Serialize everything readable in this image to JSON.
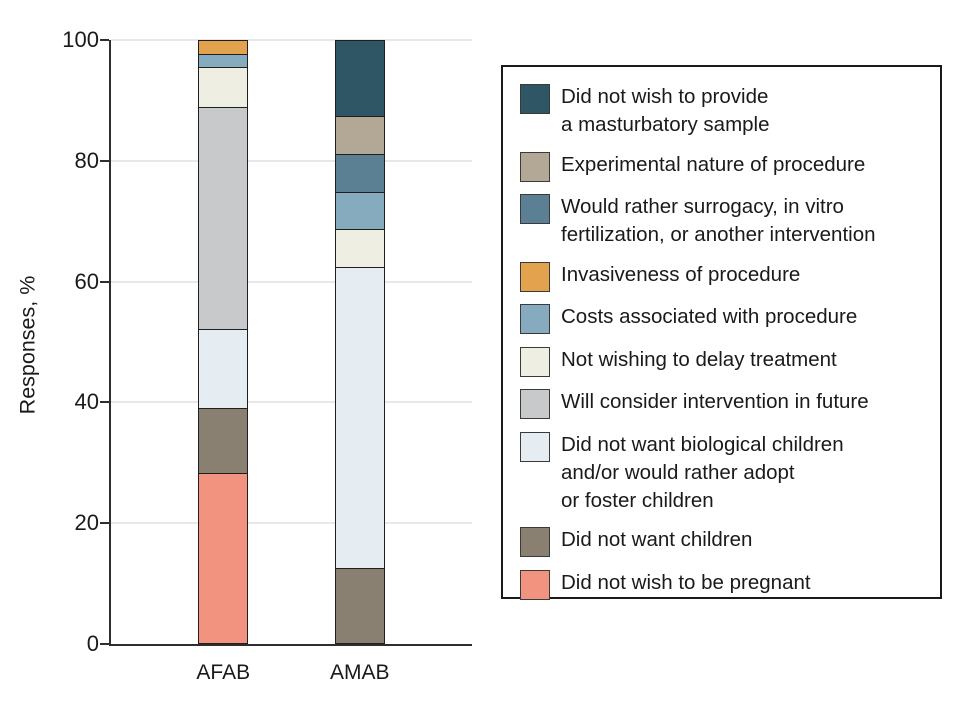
{
  "chart_data": {
    "type": "bar",
    "stacked": true,
    "title": "",
    "xlabel": "",
    "ylabel": "Responses, %",
    "ylim": [
      0,
      100
    ],
    "yticks": [
      0,
      20,
      40,
      60,
      80,
      100
    ],
    "grid": true,
    "legend_position": "right",
    "categories": [
      "AFAB",
      "AMAB"
    ],
    "stack_order": "bottom-to-top",
    "series": [
      {
        "name": "Did not wish to be pregnant",
        "color": "#F29380",
        "values": [
          28.3,
          0
        ]
      },
      {
        "name": "Did not want children",
        "color": "#8A8071",
        "values": [
          10.9,
          12.5
        ]
      },
      {
        "name": "Did not want biological children and/or would rather adopt or foster children",
        "color": "#E6EDF2",
        "values": [
          13.0,
          50.0
        ]
      },
      {
        "name": "Will consider intervention in future",
        "color": "#C7C9CB",
        "values": [
          37.0,
          0
        ]
      },
      {
        "name": "Not wishing to delay treatment",
        "color": "#EFEEE2",
        "values": [
          6.5,
          6.25
        ]
      },
      {
        "name": "Costs associated with procedure",
        "color": "#87ABBE",
        "values": [
          2.2,
          6.25
        ]
      },
      {
        "name": "Would rather surrogacy, in vitro fertilization, or another intervention",
        "color": "#5B8093",
        "values": [
          0,
          6.25
        ]
      },
      {
        "name": "Experimental nature of procedure",
        "color": "#B3A895",
        "values": [
          0,
          6.25
        ]
      },
      {
        "name": "Did not wish to provide a masturbatory sample",
        "color": "#2F5665",
        "values": [
          0,
          12.5
        ]
      },
      {
        "name": "Invasiveness of procedure",
        "color": "#E3A24E",
        "values": [
          2.2,
          0
        ]
      }
    ]
  },
  "legend": {
    "items": [
      {
        "label": "Did not wish to provide\na masturbatory sample",
        "color": "#2F5665"
      },
      {
        "label": "Experimental nature of procedure",
        "color": "#B3A895"
      },
      {
        "label": "Would rather surrogacy, in vitro\nfertilization, or another intervention",
        "color": "#5B8093"
      },
      {
        "label": "Invasiveness of procedure",
        "color": "#E3A24E"
      },
      {
        "label": "Costs associated with procedure",
        "color": "#87ABBE"
      },
      {
        "label": "Not wishing to delay treatment",
        "color": "#EFEEE2"
      },
      {
        "label": "Will consider intervention in future",
        "color": "#C7C9CB"
      },
      {
        "label": "Did not want biological children\nand/or would rather adopt\nor foster children",
        "color": "#E6EDF2"
      },
      {
        "label": "Did not want children",
        "color": "#8A8071"
      },
      {
        "label": "Did not wish to be pregnant",
        "color": "#F29380"
      }
    ]
  }
}
